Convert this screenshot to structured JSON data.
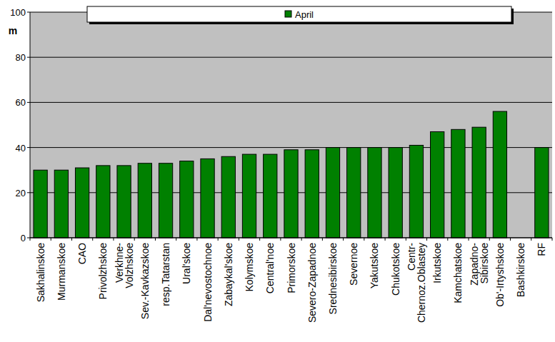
{
  "chart_data": {
    "type": "bar",
    "y_label": "m",
    "categories": [
      "Sakhalinskoe",
      "Murmanskoe",
      "CAO",
      "Privolzhskoe",
      "Verkhne-\nVolzhskoe",
      "Sev.-Kavkazskoe",
      "resp.Tatarstan",
      "Ural'skoe",
      "Dal'nevostochnoe",
      "Zabaykal'skoe",
      "Kolymskoe",
      "Central'noe",
      "Primorskoe",
      "Severo-Zapadnoe",
      "Srednesibirskoe",
      "Severnoe",
      "Yakutskoe",
      "Chukotskoe",
      "Centr-\nChernoz.Oblastey",
      "Irkutskoe",
      "Kamchatskoe",
      "Zapadno-\nSibirskoe",
      "Ob'-Irtyshskoe",
      "Bashkirskoe",
      "RF"
    ],
    "series": [
      {
        "name": "April",
        "color": "#008000",
        "values": [
          30,
          30,
          31,
          32,
          32,
          33,
          33,
          34,
          35,
          36,
          37,
          37,
          39,
          39,
          40,
          40,
          40,
          40,
          41,
          47,
          48,
          49,
          56,
          null,
          40
        ]
      }
    ],
    "ylim": [
      0,
      100
    ],
    "yticks": [
      0,
      20,
      40,
      60,
      80,
      100
    ],
    "grid": true,
    "legend": "top"
  }
}
